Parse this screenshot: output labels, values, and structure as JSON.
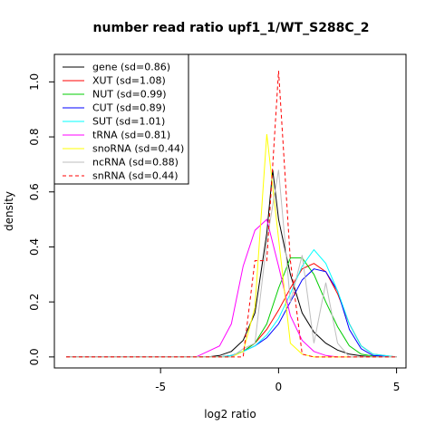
{
  "chart_data": {
    "type": "line",
    "title": "number read ratio upf1_1/WT_S288C_2",
    "xlabel": "log2 ratio",
    "ylabel": "density",
    "xlim": [
      -9.5,
      5.4
    ],
    "ylim": [
      -0.04,
      1.1
    ],
    "x_ticks": [
      -5,
      0,
      5
    ],
    "x_tick_labels": [
      "-5",
      "0",
      "5"
    ],
    "y_ticks": [
      0.0,
      0.2,
      0.4,
      0.6,
      0.8,
      1.0
    ],
    "y_tick_labels": [
      "0.0",
      "0.2",
      "0.4",
      "0.6",
      "0.8",
      "1.0"
    ],
    "grid": false,
    "legend_position": "top-left",
    "series": [
      {
        "name": "gene (sd=0.86)",
        "color": "#000000",
        "dash": "solid",
        "x": [
          -9,
          -3,
          -2.5,
          -2,
          -1.5,
          -1,
          -0.5,
          -0.25,
          0,
          0.5,
          1,
          1.5,
          2,
          2.5,
          3,
          3.5,
          4,
          5
        ],
        "y": [
          0,
          0,
          0.005,
          0.02,
          0.06,
          0.16,
          0.45,
          0.68,
          0.5,
          0.3,
          0.16,
          0.09,
          0.05,
          0.025,
          0.01,
          0.004,
          0,
          0
        ]
      },
      {
        "name": "XUT (sd=1.08)",
        "color": "#ff0000",
        "dash": "solid",
        "x": [
          -9,
          -2.5,
          -2,
          -1.5,
          -1,
          -0.5,
          0,
          0.5,
          1,
          1.5,
          2,
          2.5,
          3,
          3.5,
          4,
          5
        ],
        "y": [
          0,
          0,
          0.005,
          0.02,
          0.05,
          0.1,
          0.17,
          0.25,
          0.32,
          0.34,
          0.31,
          0.23,
          0.12,
          0.04,
          0.01,
          0
        ]
      },
      {
        "name": "NUT (sd=0.99)",
        "color": "#00cd00",
        "dash": "solid",
        "x": [
          -9,
          -2.5,
          -2,
          -1.5,
          -1,
          -0.5,
          0,
          0.5,
          1,
          1.5,
          2,
          2.5,
          3,
          3.5,
          4,
          5
        ],
        "y": [
          0,
          0,
          0.005,
          0.02,
          0.05,
          0.12,
          0.25,
          0.36,
          0.36,
          0.3,
          0.2,
          0.11,
          0.04,
          0.01,
          0.003,
          0
        ]
      },
      {
        "name": "CUT (sd=0.89)",
        "color": "#0000ff",
        "dash": "solid",
        "x": [
          -9,
          -2.5,
          -2,
          -1.5,
          -1,
          -0.5,
          0,
          0.5,
          1,
          1.5,
          2,
          2.5,
          3,
          3.5,
          4,
          5
        ],
        "y": [
          0,
          0,
          0.005,
          0.02,
          0.04,
          0.07,
          0.12,
          0.2,
          0.28,
          0.32,
          0.31,
          0.24,
          0.1,
          0.03,
          0.005,
          0
        ]
      },
      {
        "name": "SUT (sd=1.01)",
        "color": "#00ffff",
        "dash": "solid",
        "x": [
          -9,
          -2.5,
          -2,
          -1.5,
          -1,
          -0.5,
          0,
          0.5,
          1,
          1.5,
          2,
          2.5,
          3,
          3.5,
          4,
          5
        ],
        "y": [
          0,
          0,
          0.005,
          0.02,
          0.04,
          0.08,
          0.14,
          0.23,
          0.33,
          0.39,
          0.34,
          0.24,
          0.12,
          0.04,
          0.01,
          0
        ]
      },
      {
        "name": "tRNA (sd=0.81)",
        "color": "#ff00ff",
        "dash": "solid",
        "x": [
          -9,
          -3.5,
          -3,
          -2.5,
          -2,
          -1.5,
          -1,
          -0.5,
          0,
          0.5,
          1,
          1.5,
          2,
          2.5,
          5
        ],
        "y": [
          0,
          0,
          0.02,
          0.04,
          0.12,
          0.33,
          0.46,
          0.5,
          0.33,
          0.15,
          0.06,
          0.02,
          0.005,
          0,
          0
        ]
      },
      {
        "name": "snoRNA (sd=0.44)",
        "color": "#ffff00",
        "dash": "solid",
        "x": [
          -9,
          -2,
          -1.5,
          -1,
          -0.5,
          0,
          0.5,
          1,
          1.5,
          5
        ],
        "y": [
          0,
          0,
          0.02,
          0.18,
          0.81,
          0.43,
          0.05,
          0.01,
          0,
          0
        ]
      },
      {
        "name": "ncRNA (sd=0.88)",
        "color": "#bebebe",
        "dash": "solid",
        "x": [
          -9,
          -2,
          -1.5,
          -1,
          -0.5,
          0,
          0.5,
          1,
          1.5,
          2,
          2.5,
          3,
          5
        ],
        "y": [
          0,
          0,
          0.03,
          0.05,
          0.42,
          0.68,
          0.2,
          0.37,
          0.05,
          0.27,
          0.05,
          0,
          0
        ]
      },
      {
        "name": "snRNA (sd=0.44)",
        "color": "#ff0000",
        "dash": "dashed",
        "x": [
          -9,
          -1.5,
          -1,
          -0.5,
          0,
          0.5,
          1,
          1.5,
          5
        ],
        "y": [
          0,
          0,
          0.35,
          0.35,
          1.04,
          0.35,
          0.01,
          0,
          0
        ]
      }
    ]
  }
}
